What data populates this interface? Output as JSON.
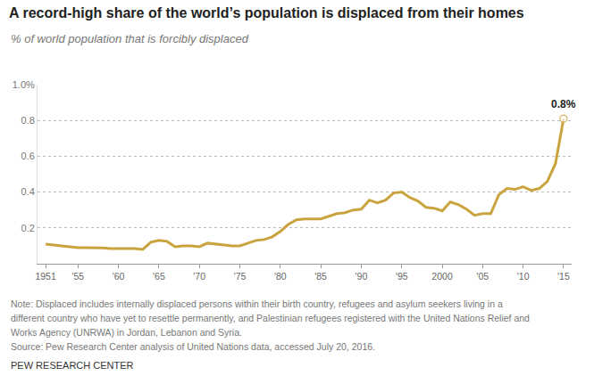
{
  "chart_data": {
    "type": "line",
    "title": "A record-high share of the world’s population is displaced from their homes",
    "subtitle": "% of world population that is forcibly displaced",
    "x": [
      1951,
      1952,
      1953,
      1954,
      1955,
      1956,
      1957,
      1958,
      1959,
      1960,
      1961,
      1962,
      1963,
      1964,
      1965,
      1966,
      1967,
      1968,
      1969,
      1970,
      1971,
      1972,
      1973,
      1974,
      1975,
      1976,
      1977,
      1978,
      1979,
      1980,
      1981,
      1982,
      1983,
      1984,
      1985,
      1986,
      1987,
      1988,
      1989,
      1990,
      1991,
      1992,
      1993,
      1994,
      1995,
      1996,
      1997,
      1998,
      1999,
      2000,
      2001,
      2002,
      2003,
      2004,
      2005,
      2006,
      2007,
      2008,
      2009,
      2010,
      2011,
      2012,
      2013,
      2014,
      2015
    ],
    "values": [
      0.11,
      0.105,
      0.1,
      0.095,
      0.09,
      0.09,
      0.09,
      0.088,
      0.085,
      0.085,
      0.085,
      0.085,
      0.08,
      0.12,
      0.13,
      0.125,
      0.095,
      0.1,
      0.1,
      0.095,
      0.115,
      0.11,
      0.105,
      0.1,
      0.1,
      0.115,
      0.13,
      0.135,
      0.15,
      0.18,
      0.22,
      0.245,
      0.25,
      0.25,
      0.25,
      0.265,
      0.28,
      0.285,
      0.3,
      0.305,
      0.355,
      0.34,
      0.355,
      0.395,
      0.4,
      0.37,
      0.35,
      0.315,
      0.31,
      0.295,
      0.345,
      0.33,
      0.305,
      0.27,
      0.28,
      0.28,
      0.385,
      0.42,
      0.415,
      0.43,
      0.41,
      0.42,
      0.46,
      0.56,
      0.81
    ],
    "color": "#c9a33e",
    "xlim": [
      1950,
      2016
    ],
    "xticks": [
      {
        "value": 1951,
        "label": "1951"
      },
      {
        "value": 1955,
        "label": "'55"
      },
      {
        "value": 1960,
        "label": "'60"
      },
      {
        "value": 1965,
        "label": "'65"
      },
      {
        "value": 1970,
        "label": "'70"
      },
      {
        "value": 1975,
        "label": "'75"
      },
      {
        "value": 1980,
        "label": "'80"
      },
      {
        "value": 1985,
        "label": "'85"
      },
      {
        "value": 1990,
        "label": "'90"
      },
      {
        "value": 1995,
        "label": "'95"
      },
      {
        "value": 2000,
        "label": "2000"
      },
      {
        "value": 2005,
        "label": "'05"
      },
      {
        "value": 2010,
        "label": "'10"
      },
      {
        "value": 2015,
        "label": "'15"
      }
    ],
    "ylim": [
      0,
      1.0
    ],
    "yticks": [
      0.2,
      0.4,
      0.6,
      0.8,
      {
        "value": 1.0,
        "label": "1.0%"
      }
    ],
    "grid": true,
    "annotations": [
      {
        "x": 2015,
        "y": 0.81,
        "text": "0.8%"
      }
    ],
    "notes": [
      "Note: Displaced includes internally displaced persons within their birth country, refugees and asylum seekers living in a",
      "different country who have yet to resettle permanently, and Palestinian refugees registered with the United Nations Relief and",
      "Works Agency (UNRWA) in Jordan, Lebanon and Syria."
    ],
    "source": "Source: Pew Research Center analysis of United Nations data, accessed July 20, 2016.",
    "credit": "PEW RESEARCH CENTER"
  }
}
